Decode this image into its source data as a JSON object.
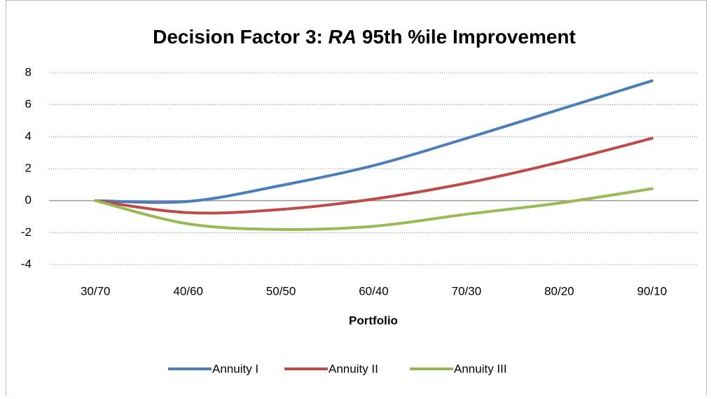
{
  "chart_data": {
    "type": "line",
    "title": [
      "Decision Factor 3: ",
      "RA",
      " 95th %ile Improvement"
    ],
    "x_label": "Portfolio",
    "categories": [
      "30/70",
      "40/60",
      "50/50",
      "60/40",
      "70/30",
      "80/20",
      "90/10"
    ],
    "series": [
      {
        "name": "Annuity I",
        "color": "#4a7ebb",
        "values": [
          0,
          -0.05,
          0.95,
          2.2,
          3.9,
          5.7,
          7.5
        ]
      },
      {
        "name": "Annuity II",
        "color": "#be4b48",
        "values": [
          0,
          -0.75,
          -0.55,
          0.1,
          1.1,
          2.4,
          3.9
        ]
      },
      {
        "name": "Annuity III",
        "color": "#98b954",
        "values": [
          0,
          -1.45,
          -1.8,
          -1.6,
          -0.85,
          -0.15,
          0.75
        ]
      }
    ],
    "ylim": [
      -4,
      8
    ],
    "yticks": [
      -4,
      -2,
      0,
      2,
      4,
      6,
      8
    ],
    "grid": true,
    "legend": "bottom"
  }
}
